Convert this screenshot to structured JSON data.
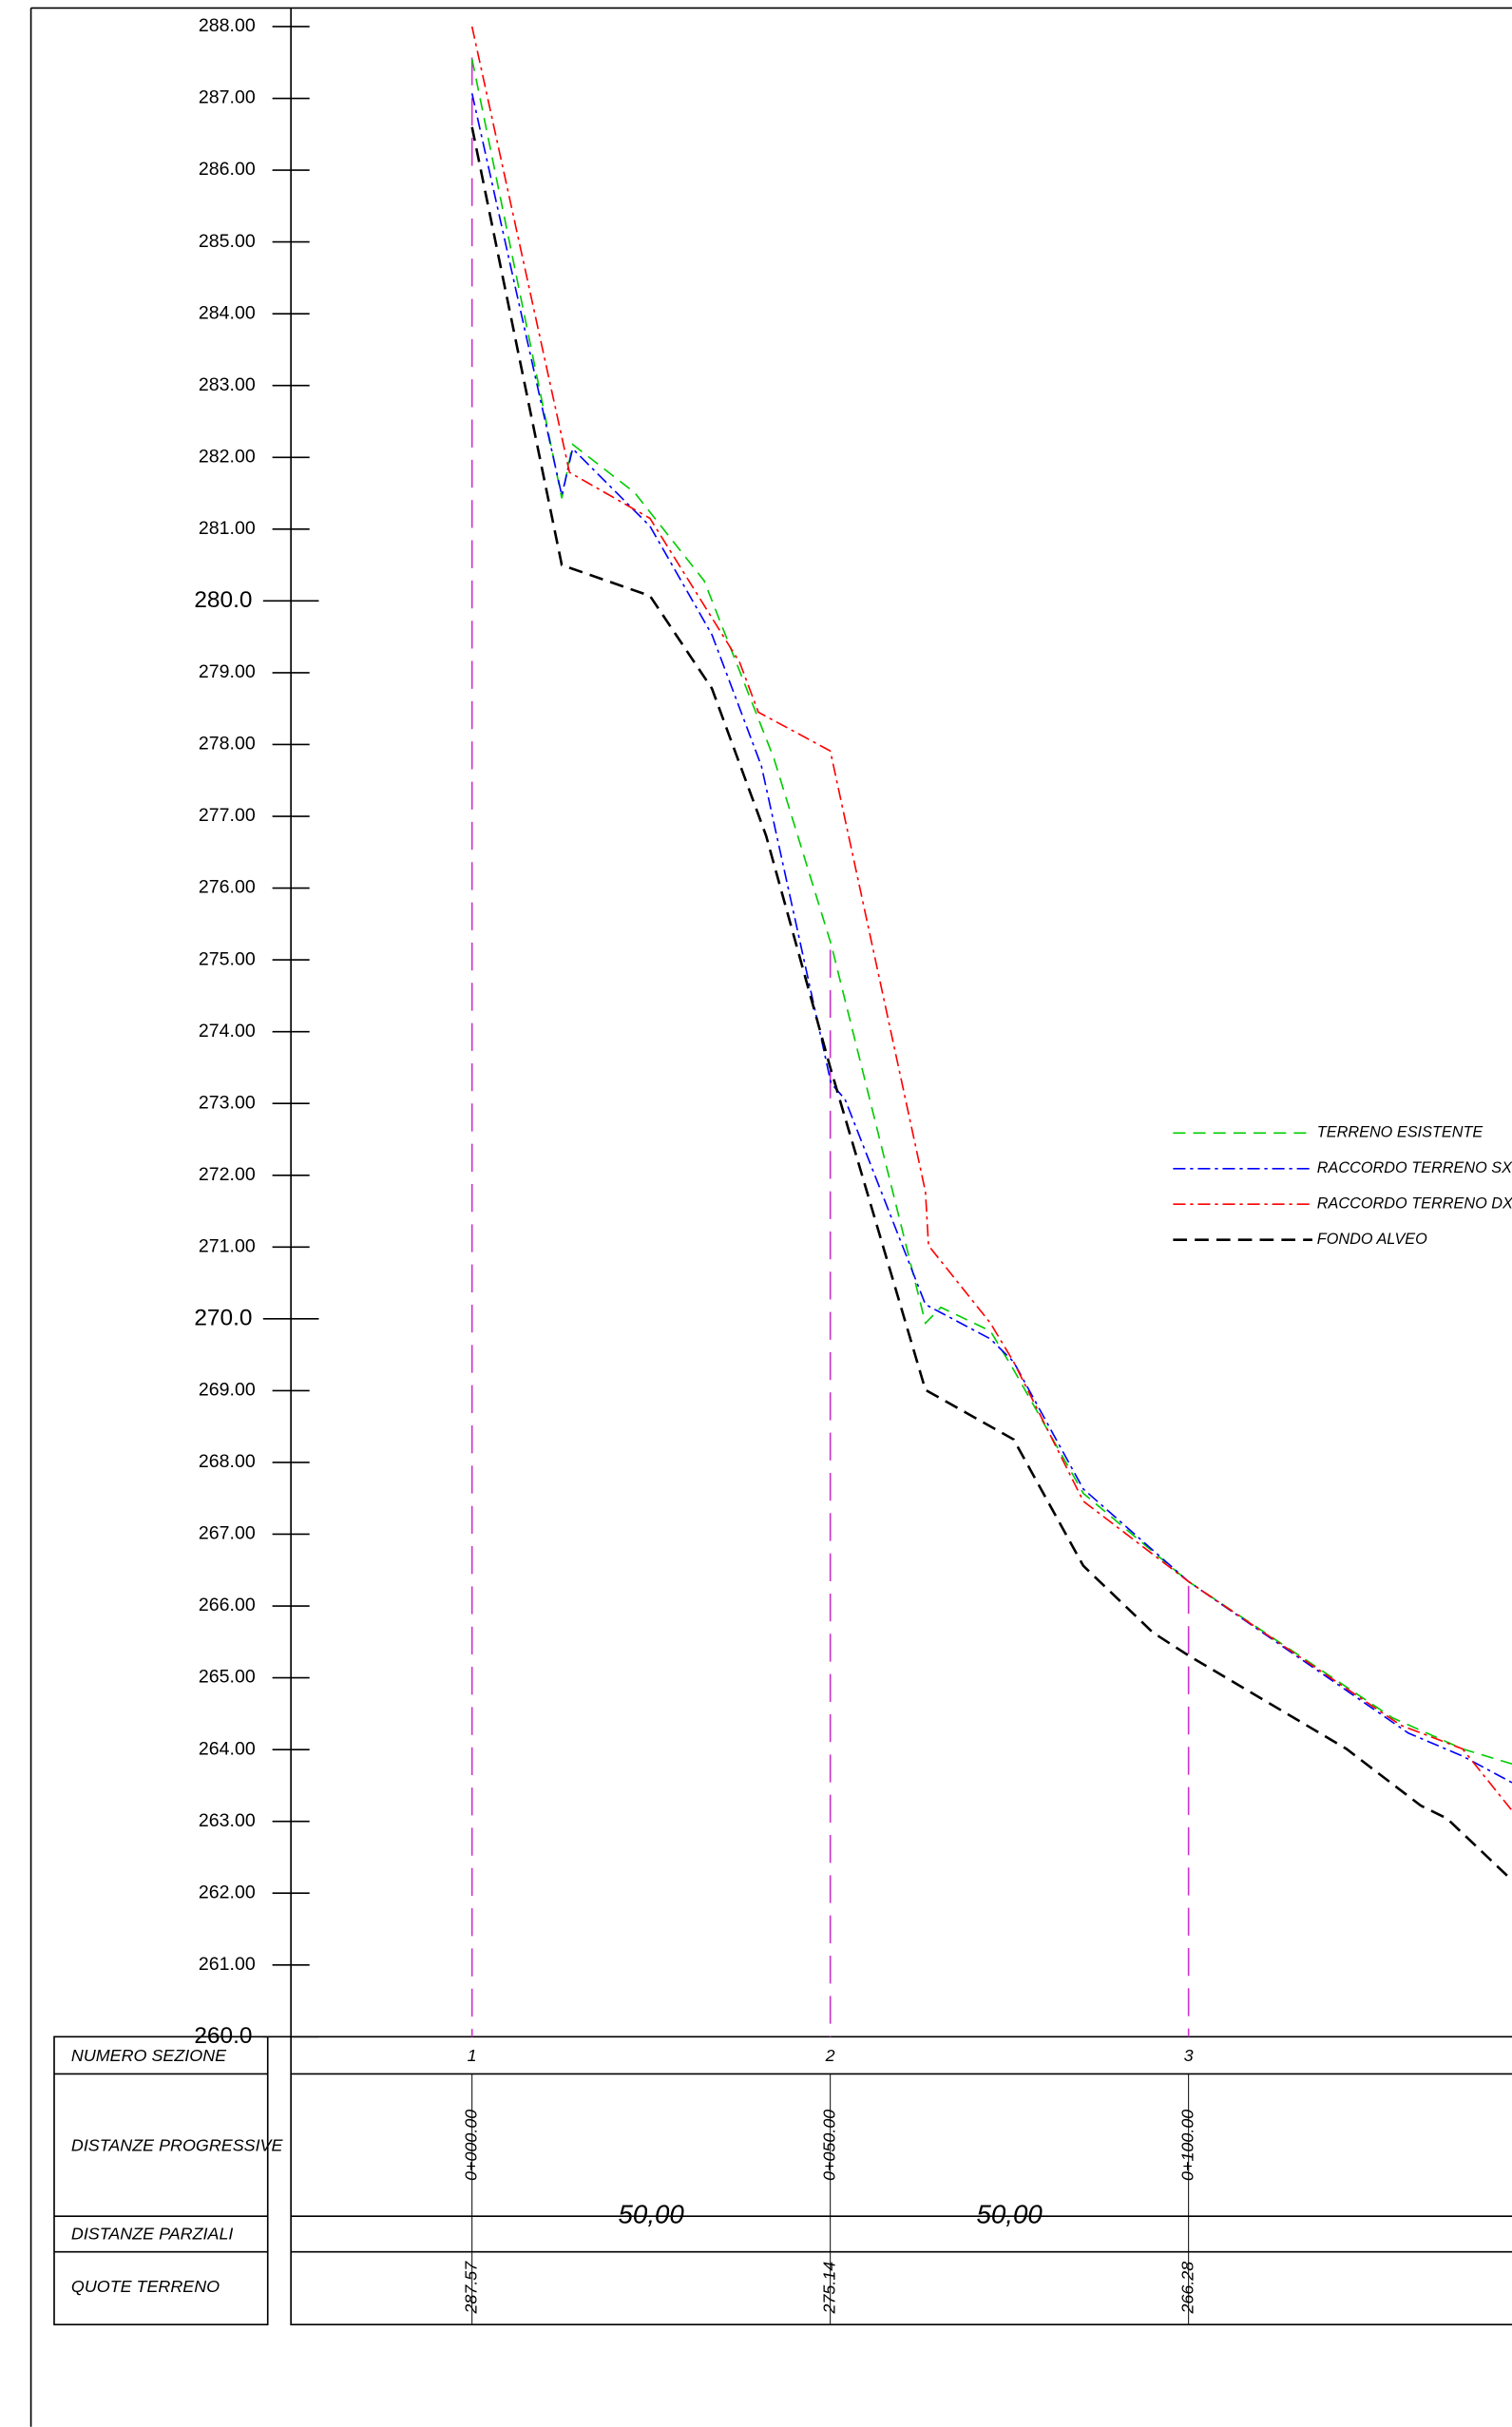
{
  "chart_data": {
    "type": "line",
    "series": [
      {
        "name": "TERRENO ESISTENTE",
        "color": "#00cc00",
        "dash": "8 5",
        "x": [
          0,
          12.53,
          14.04,
          22.68,
          32.4,
          42.12,
          50.11,
          63.28,
          65.44,
          72.35,
          75.59,
          85.31,
          100,
          128.51,
          138.23,
          145.14
        ],
        "values": [
          287.55,
          281.43,
          282.18,
          281.51,
          280.28,
          277.81,
          275.22,
          269.94,
          270.16,
          269.83,
          269.29,
          267.57,
          266.34,
          264.44,
          264.01,
          263.8
        ]
      },
      {
        "name": "RACCORDO TERRENO SX",
        "color": "#0000ff",
        "dash": "8 3 2 3",
        "x": [
          0,
          12.53,
          14.04,
          24.84,
          33.48,
          40.39,
          50.11,
          52.05,
          63.28,
          72.35,
          75.59,
          85.31,
          100,
          130.67,
          138.23,
          145.14
        ],
        "values": [
          287.07,
          281.47,
          282.12,
          281.04,
          279.53,
          277.7,
          273.28,
          273.06,
          270.2,
          269.72,
          269.4,
          267.63,
          266.34,
          264.23,
          263.91,
          263.54
        ]
      },
      {
        "name": "RACCORDO TERRENO DX",
        "color": "#ff0000",
        "dash": "8 3 2 3",
        "x": [
          0,
          13.61,
          24.84,
          37.37,
          39.96,
          50,
          63.28,
          63.71,
          72.35,
          75.59,
          85.31,
          100,
          129.59,
          138.23,
          145.14
        ],
        "values": [
          288.0,
          281.79,
          281.15,
          279.14,
          278.45,
          277.91,
          271.77,
          271.02,
          269.94,
          269.4,
          267.46,
          266.34,
          264.34,
          264.01,
          263.15
        ]
      },
      {
        "name": "FONDO ALVEO",
        "color": "#000000",
        "dash": "9 5",
        "x": [
          0,
          12.53,
          24.84,
          33.48,
          41.04,
          50,
          63.28,
          75.59,
          85.31,
          95.03,
          100,
          122.03,
          132.4,
          136.07,
          145.14
        ],
        "values": [
          286.6,
          280.5,
          280.07,
          278.78,
          276.73,
          273.5,
          269.01,
          268.32,
          266.56,
          265.63,
          265.31,
          264.01,
          263.22,
          263.04,
          262.18
        ]
      }
    ],
    "xlim": [
      0,
      145.14
    ],
    "ylim": [
      260,
      288
    ],
    "yticks": [
      {
        "value": 288,
        "label": "288.00"
      },
      {
        "value": 287,
        "label": "287.00"
      },
      {
        "value": 286,
        "label": "286.00"
      },
      {
        "value": 285,
        "label": "285.00"
      },
      {
        "value": 284,
        "label": "284.00"
      },
      {
        "value": 283,
        "label": "283.00"
      },
      {
        "value": 282,
        "label": "282.00"
      },
      {
        "value": 281,
        "label": "281.00"
      },
      {
        "value": 280,
        "label": "280.0"
      },
      {
        "value": 279,
        "label": "279.00"
      },
      {
        "value": 278,
        "label": "278.00"
      },
      {
        "value": 277,
        "label": "277.00"
      },
      {
        "value": 276,
        "label": "276.00"
      },
      {
        "value": 275,
        "label": "275.00"
      },
      {
        "value": 274,
        "label": "274.00"
      },
      {
        "value": 273,
        "label": "273.00"
      },
      {
        "value": 272,
        "label": "272.00"
      },
      {
        "value": 271,
        "label": "271.00"
      },
      {
        "value": 270,
        "label": "270.0"
      },
      {
        "value": 269,
        "label": "269.00"
      },
      {
        "value": 268,
        "label": "268.00"
      },
      {
        "value": 267,
        "label": "267.00"
      },
      {
        "value": 266,
        "label": "266.00"
      },
      {
        "value": 265,
        "label": "265.00"
      },
      {
        "value": 264,
        "label": "264.00"
      },
      {
        "value": 263,
        "label": "263.00"
      },
      {
        "value": 262,
        "label": "262.00"
      },
      {
        "value": 261,
        "label": "261.00"
      },
      {
        "value": 260,
        "label": "260.0"
      }
    ],
    "section_color": "#cc33cc"
  },
  "table": {
    "row_labels": [
      "NUMERO SEZIONE",
      "DISTANZE PROGRESSIVE",
      "DISTANZE PARZIALI",
      "QUOTE TERRENO"
    ],
    "sections": [
      {
        "number": "1",
        "chainage": 0,
        "progressive": "0+000.00",
        "elevation": 287.57
      },
      {
        "number": "2",
        "chainage": 50,
        "progressive": "0+050.00",
        "elevation": 275.14
      },
      {
        "number": "3",
        "chainage": 100,
        "progressive": "0+100.00",
        "elevation": 266.28
      }
    ],
    "partials": [
      "50,00",
      "50,00"
    ]
  }
}
